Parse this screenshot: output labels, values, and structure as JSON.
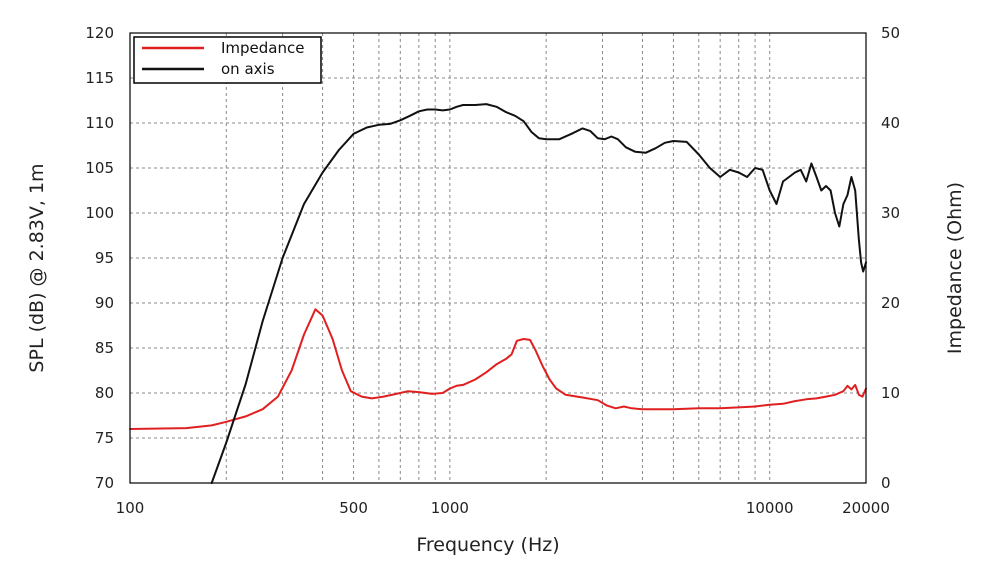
{
  "chart_data": {
    "type": "line",
    "xlabel": "Frequency (Hz)",
    "ylabel_left": "SPL (dB) @ 2.83V, 1m",
    "ylabel_right": "Impedance (Ohm)",
    "x_scale": "log",
    "xlim": [
      100,
      20000
    ],
    "ylim_left": [
      70,
      120
    ],
    "ylim_right": [
      0,
      50
    ],
    "grid": true,
    "legend_position": "top-left",
    "x_tick_labels": [
      {
        "value": 100,
        "label": "100"
      },
      {
        "value": 500,
        "label": "500"
      },
      {
        "value": 1000,
        "label": "1000"
      },
      {
        "value": 10000,
        "label": "10000"
      },
      {
        "value": 20000,
        "label": "20000"
      }
    ],
    "y_left_ticks": [
      {
        "value": 70,
        "label": "70"
      },
      {
        "value": 75,
        "label": "75"
      },
      {
        "value": 80,
        "label": "80"
      },
      {
        "value": 85,
        "label": "85"
      },
      {
        "value": 90,
        "label": "90"
      },
      {
        "value": 95,
        "label": "95"
      },
      {
        "value": 100,
        "label": "100"
      },
      {
        "value": 105,
        "label": "105"
      },
      {
        "value": 110,
        "label": "110"
      },
      {
        "value": 115,
        "label": "115"
      },
      {
        "value": 120,
        "label": "120"
      }
    ],
    "y_right_ticks": [
      {
        "value": 0,
        "label": "0"
      },
      {
        "value": 10,
        "label": "10"
      },
      {
        "value": 20,
        "label": "20"
      },
      {
        "value": 30,
        "label": "30"
      },
      {
        "value": 40,
        "label": "40"
      },
      {
        "value": 50,
        "label": "50"
      }
    ],
    "series": [
      {
        "name": "Impedance",
        "color": "#e02020",
        "axis": "right",
        "points": [
          [
            100,
            6.0
          ],
          [
            150,
            6.1
          ],
          [
            180,
            6.4
          ],
          [
            200,
            6.8
          ],
          [
            230,
            7.4
          ],
          [
            260,
            8.2
          ],
          [
            290,
            9.6
          ],
          [
            320,
            12.5
          ],
          [
            350,
            16.5
          ],
          [
            380,
            19.3
          ],
          [
            400,
            18.6
          ],
          [
            430,
            16.0
          ],
          [
            460,
            12.5
          ],
          [
            490,
            10.2
          ],
          [
            530,
            9.6
          ],
          [
            570,
            9.4
          ],
          [
            620,
            9.6
          ],
          [
            680,
            9.9
          ],
          [
            740,
            10.2
          ],
          [
            800,
            10.1
          ],
          [
            880,
            9.9
          ],
          [
            950,
            10.0
          ],
          [
            1000,
            10.5
          ],
          [
            1050,
            10.8
          ],
          [
            1100,
            10.9
          ],
          [
            1200,
            11.5
          ],
          [
            1300,
            12.3
          ],
          [
            1400,
            13.2
          ],
          [
            1500,
            13.8
          ],
          [
            1560,
            14.3
          ],
          [
            1620,
            15.8
          ],
          [
            1700,
            16.0
          ],
          [
            1780,
            15.9
          ],
          [
            1850,
            14.8
          ],
          [
            1950,
            13.0
          ],
          [
            2050,
            11.5
          ],
          [
            2150,
            10.5
          ],
          [
            2300,
            9.8
          ],
          [
            2600,
            9.5
          ],
          [
            2900,
            9.2
          ],
          [
            3100,
            8.6
          ],
          [
            3300,
            8.3
          ],
          [
            3500,
            8.5
          ],
          [
            3700,
            8.3
          ],
          [
            4000,
            8.2
          ],
          [
            5000,
            8.2
          ],
          [
            6000,
            8.3
          ],
          [
            7000,
            8.3
          ],
          [
            8000,
            8.4
          ],
          [
            9000,
            8.5
          ],
          [
            10000,
            8.7
          ],
          [
            11000,
            8.8
          ],
          [
            12000,
            9.1
          ],
          [
            13000,
            9.3
          ],
          [
            14000,
            9.4
          ],
          [
            15000,
            9.6
          ],
          [
            16000,
            9.8
          ],
          [
            17000,
            10.2
          ],
          [
            17500,
            10.8
          ],
          [
            18000,
            10.4
          ],
          [
            18500,
            10.9
          ],
          [
            19000,
            9.8
          ],
          [
            19500,
            9.6
          ],
          [
            20000,
            10.5
          ]
        ]
      },
      {
        "name": "on axis",
        "color": "#111111",
        "axis": "left",
        "points": [
          [
            180,
            70.0
          ],
          [
            200,
            74.5
          ],
          [
            230,
            81.0
          ],
          [
            260,
            88.0
          ],
          [
            300,
            95.0
          ],
          [
            350,
            101.0
          ],
          [
            400,
            104.5
          ],
          [
            450,
            107.0
          ],
          [
            500,
            108.8
          ],
          [
            550,
            109.5
          ],
          [
            600,
            109.8
          ],
          [
            650,
            109.9
          ],
          [
            700,
            110.3
          ],
          [
            750,
            110.8
          ],
          [
            800,
            111.3
          ],
          [
            850,
            111.5
          ],
          [
            900,
            111.5
          ],
          [
            950,
            111.4
          ],
          [
            1000,
            111.5
          ],
          [
            1050,
            111.8
          ],
          [
            1100,
            112.0
          ],
          [
            1200,
            112.0
          ],
          [
            1300,
            112.1
          ],
          [
            1400,
            111.8
          ],
          [
            1500,
            111.2
          ],
          [
            1600,
            110.8
          ],
          [
            1700,
            110.2
          ],
          [
            1800,
            109.0
          ],
          [
            1900,
            108.3
          ],
          [
            2000,
            108.2
          ],
          [
            2200,
            108.2
          ],
          [
            2400,
            108.8
          ],
          [
            2600,
            109.4
          ],
          [
            2750,
            109.1
          ],
          [
            2900,
            108.3
          ],
          [
            3050,
            108.2
          ],
          [
            3200,
            108.5
          ],
          [
            3350,
            108.2
          ],
          [
            3550,
            107.3
          ],
          [
            3800,
            106.8
          ],
          [
            4100,
            106.7
          ],
          [
            4400,
            107.2
          ],
          [
            4700,
            107.8
          ],
          [
            5000,
            108.0
          ],
          [
            5500,
            107.9
          ],
          [
            6000,
            106.5
          ],
          [
            6500,
            105.0
          ],
          [
            7000,
            104.0
          ],
          [
            7500,
            104.8
          ],
          [
            8000,
            104.5
          ],
          [
            8500,
            104.0
          ],
          [
            9000,
            105.0
          ],
          [
            9500,
            104.8
          ],
          [
            10000,
            102.5
          ],
          [
            10500,
            101.0
          ],
          [
            11000,
            103.5
          ],
          [
            12000,
            104.5
          ],
          [
            12500,
            104.8
          ],
          [
            13000,
            103.5
          ],
          [
            13500,
            105.5
          ],
          [
            14000,
            104.0
          ],
          [
            14500,
            102.5
          ],
          [
            15000,
            103.0
          ],
          [
            15500,
            102.5
          ],
          [
            16000,
            100.0
          ],
          [
            16500,
            98.5
          ],
          [
            17000,
            101.0
          ],
          [
            17500,
            102.0
          ],
          [
            18000,
            104.0
          ],
          [
            18500,
            102.5
          ],
          [
            19000,
            97.0
          ],
          [
            19300,
            94.5
          ],
          [
            19600,
            93.5
          ],
          [
            20000,
            94.5
          ]
        ]
      }
    ]
  }
}
